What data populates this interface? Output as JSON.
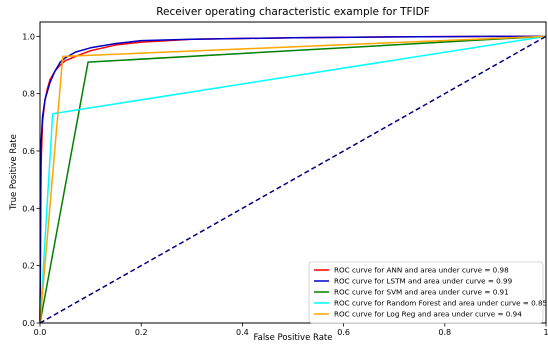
{
  "chart_data": {
    "type": "line",
    "title": "Receiver operating characteristic example for TFIDF",
    "xlabel": "False Positive Rate",
    "ylabel": "True Positive Rate",
    "xlim": [
      0.0,
      1.0
    ],
    "ylim": [
      0.0,
      1.05
    ],
    "x_ticks": [
      "0.0",
      "0.2",
      "0.4",
      "0.6",
      "0.8",
      "1"
    ],
    "y_ticks": [
      "0.0",
      "0.2",
      "0.4",
      "0.6",
      "0.8",
      "1.0"
    ],
    "grid": false,
    "legend_position": "bottom-right",
    "series": [
      {
        "name": "ROC curve for ANN and area under curve = 0.98",
        "color": "#ff0000",
        "x": [
          0.0,
          0.002,
          0.005,
          0.01,
          0.015,
          0.02,
          0.03,
          0.04,
          0.05,
          0.07,
          0.1,
          0.15,
          0.2,
          0.3,
          0.5,
          0.7,
          0.9,
          1.0
        ],
        "y": [
          0.0,
          0.55,
          0.7,
          0.78,
          0.82,
          0.85,
          0.88,
          0.9,
          0.915,
          0.93,
          0.95,
          0.97,
          0.98,
          0.99,
          0.995,
          0.998,
          1.0,
          1.0
        ]
      },
      {
        "name": "ROC curve for LSTM and area under curve = 0.99",
        "color": "#0000cc",
        "x": [
          0.0,
          0.002,
          0.005,
          0.01,
          0.015,
          0.02,
          0.03,
          0.04,
          0.05,
          0.07,
          0.1,
          0.15,
          0.2,
          0.3,
          0.5,
          0.7,
          0.9,
          1.0
        ],
        "y": [
          0.0,
          0.62,
          0.72,
          0.78,
          0.81,
          0.84,
          0.88,
          0.91,
          0.925,
          0.945,
          0.96,
          0.975,
          0.985,
          0.99,
          0.995,
          0.998,
          1.0,
          1.0
        ]
      },
      {
        "name": "ROC curve for SVM and area under curve = 0.91",
        "color": "#008000",
        "x": [
          0.0,
          0.095,
          1.0
        ],
        "y": [
          0.0,
          0.91,
          1.0
        ]
      },
      {
        "name": "ROC curve for Random Forest and area under curve = 0.85",
        "color": "#00ffff",
        "x": [
          0.0,
          0.025,
          1.0
        ],
        "y": [
          0.0,
          0.73,
          1.0
        ]
      },
      {
        "name": "ROC curve for Log Reg and area under curve = 0.94",
        "color": "#ffa500",
        "x": [
          0.0,
          0.045,
          1.0
        ],
        "y": [
          0.0,
          0.93,
          1.0
        ]
      },
      {
        "name": "",
        "color": "#000080",
        "dashed": true,
        "x": [
          0.0,
          1.0
        ],
        "y": [
          0.0,
          1.0
        ]
      }
    ]
  }
}
